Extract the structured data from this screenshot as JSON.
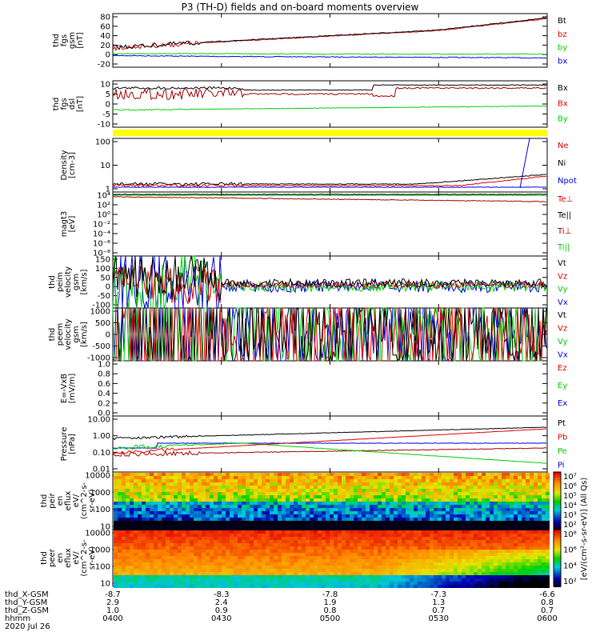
{
  "title": "P3 (TH-D) fields and on-board moments overview",
  "date": "2020 Jul 26",
  "colors": {
    "black": "#000000",
    "red": "#e00000",
    "green": "#00d000",
    "blue": "#0000e0",
    "yellow": "#ffff00",
    "darkred": "#a00000"
  },
  "panels": [
    {
      "id": "fgs-gsm",
      "ylabel": [
        "thd",
        "fgs",
        "gsm",
        "[nT]"
      ],
      "yticks": [
        "80",
        "60",
        "40",
        "20",
        "0",
        "-20"
      ],
      "legend": [
        {
          "text": "Bt",
          "color": "black"
        },
        {
          "text": "bz",
          "color": "red"
        },
        {
          "text": "by",
          "color": "green"
        },
        {
          "text": "bx",
          "color": "blue"
        }
      ]
    },
    {
      "id": "fgs-dsl",
      "ylabel": [
        "thd",
        "fgs",
        "dsl",
        "[nT]"
      ],
      "yticks": [
        "10",
        "5",
        "0",
        "-5",
        "-10"
      ],
      "legend": [
        {
          "text": "Bx",
          "color": "black"
        },
        {
          "text": "Bx",
          "color": "red"
        },
        {
          "text": "By",
          "color": "green"
        }
      ]
    },
    {
      "id": "density",
      "ylabel": [
        "Density",
        "[cm-3]"
      ],
      "yticks": [
        "100",
        "10",
        "1"
      ],
      "legend": [
        {
          "text": "Ne",
          "color": "red"
        },
        {
          "text": "Ni",
          "color": "black"
        },
        {
          "text": "Npot",
          "color": "blue"
        }
      ]
    },
    {
      "id": "temperature",
      "ylabel": [
        "magt3",
        "[eV]"
      ],
      "yticks": [
        "10⁴",
        "10²",
        "10⁰",
        "10⁻²",
        "10⁻⁴",
        "10⁻⁶",
        "10⁻⁸"
      ],
      "legend": [
        {
          "text": "Te⊥",
          "color": "red"
        },
        {
          "text": "Te||",
          "color": "black"
        },
        {
          "text": "Ti⊥",
          "color": "darkred"
        },
        {
          "text": "Ti||",
          "color": "green"
        }
      ]
    },
    {
      "id": "peim-velocity",
      "ylabel": [
        "thd",
        "peim",
        "velocity",
        "gsm",
        "[km/s]"
      ],
      "yticks": [
        "150",
        "100",
        "50",
        "0",
        "-50",
        "-100"
      ],
      "legend": [
        {
          "text": "Vt",
          "color": "black"
        },
        {
          "text": "Vz",
          "color": "red"
        },
        {
          "text": "Vy",
          "color": "green"
        },
        {
          "text": "Vx",
          "color": "blue"
        }
      ]
    },
    {
      "id": "peem-velocity",
      "ylabel": [
        "thd",
        "peem",
        "velocity",
        "gsm",
        "[km/s]"
      ],
      "yticks": [
        "1000",
        "500",
        "0",
        "-500",
        "-1000"
      ],
      "legend": [
        {
          "text": "Vt",
          "color": "black"
        },
        {
          "text": "Vz",
          "color": "red"
        },
        {
          "text": "Vy",
          "color": "green"
        },
        {
          "text": "Vx",
          "color": "blue"
        }
      ]
    },
    {
      "id": "efield",
      "ylabel": [
        "E=-VxB",
        "[mV/m]"
      ],
      "yticks": [
        "1.0",
        "0.8",
        "0.6",
        "0.4",
        "0.2",
        "0.0"
      ],
      "legend": [
        {
          "text": "Ez",
          "color": "red"
        },
        {
          "text": "Ey",
          "color": "green"
        },
        {
          "text": "Ex",
          "color": "blue"
        }
      ]
    },
    {
      "id": "pressure",
      "ylabel": [
        "Pressure",
        "[nPa]"
      ],
      "yticks": [
        "10.00",
        "1.00",
        "0.10",
        "0.01"
      ],
      "legend": [
        {
          "text": "Pt",
          "color": "black"
        },
        {
          "text": "Pb",
          "color": "red"
        },
        {
          "text": "Pe",
          "color": "green"
        },
        {
          "text": "Pi",
          "color": "blue"
        }
      ]
    },
    {
      "id": "peir",
      "ylabel": [
        "thd",
        "peir",
        "en",
        "eflux",
        "eV/",
        "(cm^2-s-",
        "sr-eV)"
      ],
      "yticks": [
        "10000",
        "1000",
        "100",
        "10"
      ]
    },
    {
      "id": "peer",
      "ylabel": [
        "thd",
        "peer",
        "en",
        "eflux",
        "eV/",
        "(cm^2-s-",
        "sr-eV)"
      ],
      "yticks": [
        "10000",
        "1000",
        "100",
        "10"
      ]
    }
  ],
  "colorbar": {
    "ticks_top": [
      "10⁷",
      "10⁶",
      "10⁵",
      "10⁴",
      "10³",
      "10²"
    ],
    "ticks_bottom": [
      "10⁸",
      "10⁶",
      "10⁴",
      "10²"
    ],
    "label": "[eV/(cm²-s-sr-eV)] (All Qs)"
  },
  "xaxis": {
    "rows": [
      {
        "label": "thd_X-GSM",
        "values": [
          "-8.7",
          "-8.3",
          "-7.8",
          "-7.3",
          "-6.6"
        ]
      },
      {
        "label": "thd_Y-GSM",
        "values": [
          "2.9",
          "2.4",
          "1.9",
          "1.3",
          "0.8"
        ]
      },
      {
        "label": "thd_Z-GSM",
        "values": [
          "1.0",
          "0.9",
          "0.8",
          "0.7",
          "0.7"
        ]
      },
      {
        "label": "hhmm",
        "values": [
          "0400",
          "0430",
          "0500",
          "0530",
          "0600"
        ]
      }
    ]
  },
  "chart_data": {
    "type": "line",
    "x": [
      "0400",
      "0430",
      "0500",
      "0530",
      "0600"
    ],
    "series": [
      {
        "name": "Bt",
        "values": [
          15,
          28,
          40,
          52,
          78
        ]
      },
      {
        "name": "bz",
        "values": [
          14,
          27,
          39,
          51,
          76
        ]
      },
      {
        "name": "by",
        "values": [
          2,
          2,
          1,
          1,
          1
        ]
      },
      {
        "name": "bx",
        "values": [
          -2,
          -4,
          -5,
          -6,
          -7
        ]
      }
    ]
  }
}
